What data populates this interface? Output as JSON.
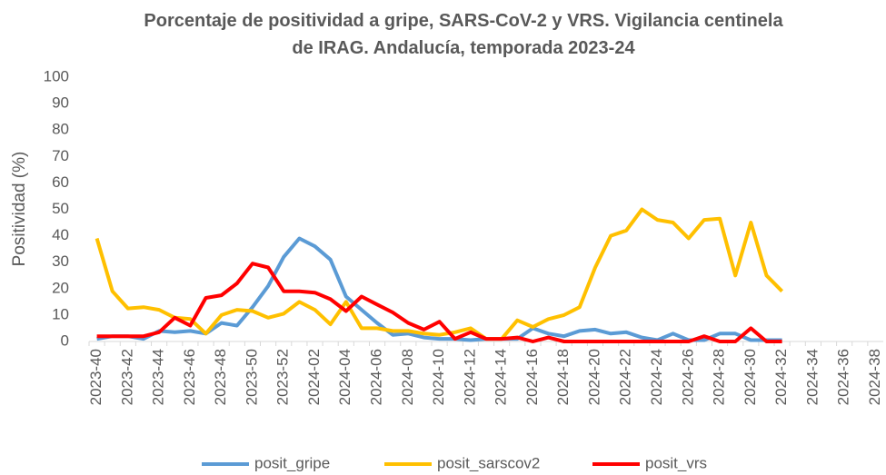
{
  "chart_data": {
    "type": "line",
    "title": "Porcentaje de positividad  a gripe, SARS-CoV-2 y VRS. Vigilancia centinela de IRAG. Andalucía, temporada 2023-24",
    "y_label": "Positividad (%)",
    "categories": [
      "2023-40",
      null,
      "2023-42",
      null,
      "2023-44",
      null,
      "2023-46",
      null,
      "2023-48",
      null,
      "2023-50",
      null,
      "2023-52",
      null,
      "2024-02",
      null,
      "2024-04",
      null,
      "2024-06",
      null,
      "2024-08",
      null,
      "2024-10",
      null,
      "2024-12",
      null,
      "2024-14",
      null,
      "2024-16",
      null,
      "2024-18",
      null,
      "2024-20",
      null,
      "2024-22",
      null,
      "2024-24",
      null,
      "2024-26",
      null,
      "2024-28",
      null,
      "2024-30",
      null,
      "2024-32",
      null,
      "2024-34",
      null,
      "2024-36",
      null,
      "2024-38"
    ],
    "series": [
      {
        "name": "posit_gripe",
        "color": "#5b9bd5",
        "values": [
          1,
          2,
          2,
          1,
          4,
          3.5,
          4,
          3,
          7,
          6,
          13,
          21,
          32,
          39,
          36,
          31,
          17,
          12,
          7,
          2.5,
          3,
          1.5,
          1,
          1,
          0.5,
          1,
          1,
          1,
          5,
          3,
          2,
          4,
          4.5,
          3,
          3.5,
          1.5,
          0.5,
          3,
          0.5,
          0.5,
          3,
          3,
          0.5,
          0.5,
          0.5,
          null,
          null,
          null,
          null,
          null,
          null
        ]
      },
      {
        "name": "posit_sarscov2",
        "color": "#ffc000",
        "values": [
          39,
          19,
          12.5,
          13,
          12,
          9,
          8.5,
          3,
          10,
          12,
          11.5,
          9,
          10.5,
          15,
          12,
          6.5,
          15,
          5,
          5,
          4,
          4,
          3,
          2.5,
          3.5,
          5,
          1,
          1,
          8,
          5.5,
          8.5,
          10,
          13,
          28,
          40,
          42,
          50,
          46,
          45,
          39,
          46,
          46.5,
          25,
          45,
          25,
          19,
          null,
          null,
          null,
          null,
          null,
          null
        ]
      },
      {
        "name": "posit_vrs",
        "color": "#ff0000",
        "values": [
          2,
          2,
          2,
          2,
          3.5,
          9,
          6,
          16.5,
          17.5,
          22,
          29.5,
          28,
          19,
          19,
          18.5,
          16,
          11.5,
          17,
          14,
          11,
          7,
          4.5,
          7.5,
          1,
          3.5,
          1,
          1,
          1.5,
          0,
          1.5,
          0,
          0,
          0,
          0,
          0,
          0,
          0,
          0,
          0,
          2,
          0,
          0,
          5,
          0,
          0,
          null,
          null,
          null,
          null,
          null,
          null
        ]
      }
    ],
    "ylim": [
      0,
      100
    ],
    "yticks": [
      0,
      10,
      20,
      30,
      40,
      50,
      60,
      70,
      80,
      90,
      100
    ],
    "grid": false,
    "legend": "bottom"
  }
}
